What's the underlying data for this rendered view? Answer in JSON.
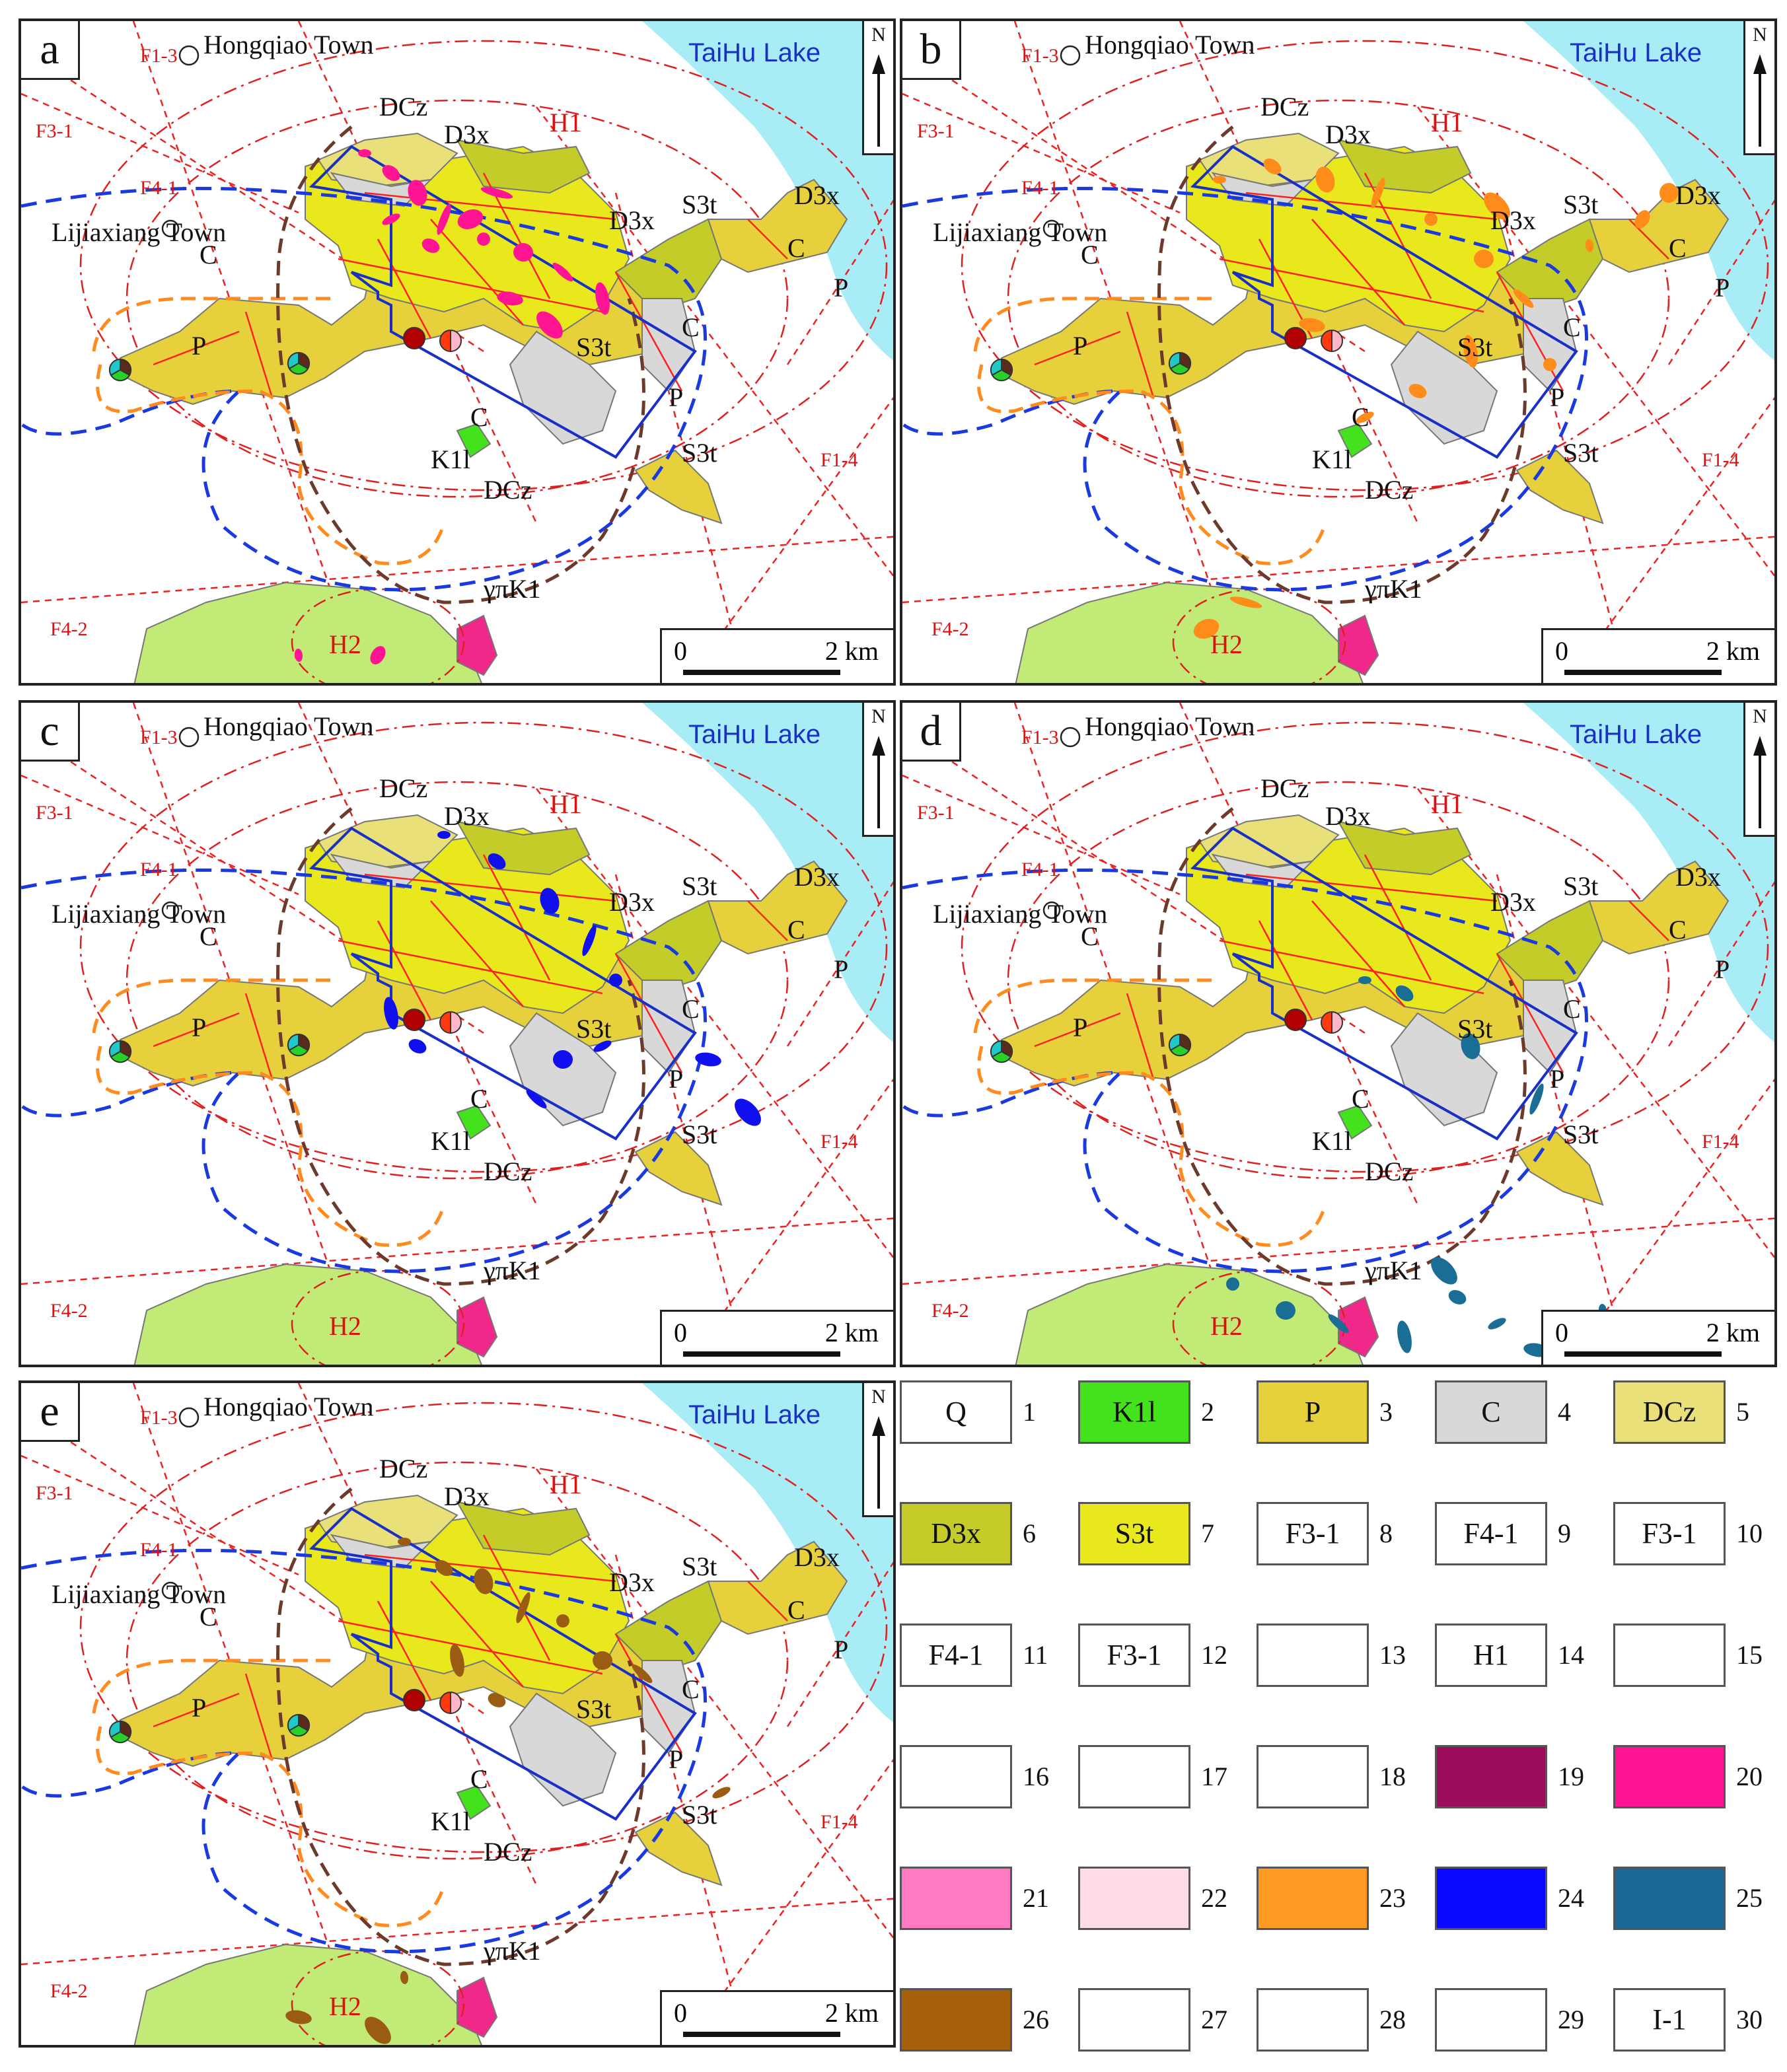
{
  "panels": [
    {
      "letter": "a",
      "overlay": "#ff1493"
    },
    {
      "letter": "b",
      "overlay": "#ff8c1a"
    },
    {
      "letter": "c",
      "overlay": "#1010ee"
    },
    {
      "letter": "d",
      "overlay": "#1a6e96"
    },
    {
      "letter": "e",
      "overlay": "#9a5b12"
    }
  ],
  "map_labels": {
    "hongqiao": "Hongqiao Town",
    "taihu": "TaiHu Lake",
    "lijiaxiang": "Lijiaxiang Town",
    "north": "N",
    "scale_zero": "0",
    "scale_km": "2 km",
    "f13": "F1-3",
    "f31": "F3-1",
    "f41": "F4-1",
    "f14": "F1-4",
    "f42": "F4-2",
    "h1": "H1",
    "h2": "H2",
    "dcz": "DCz",
    "d3x": "D3x",
    "s3t": "S3t",
    "c": "C",
    "p": "P",
    "k1l": "K1l",
    "gpk1": "γπK1"
  },
  "legend": [
    {
      "num": "1",
      "text": "Q",
      "fill": "#ffffff"
    },
    {
      "num": "2",
      "text": "K1l",
      "fill": "#44e21c"
    },
    {
      "num": "3",
      "text": "P",
      "fill": "#e6d03c"
    },
    {
      "num": "4",
      "text": "C",
      "fill": "#d8d8d8"
    },
    {
      "num": "5",
      "text": "DCz",
      "fill": "#e9e07a"
    },
    {
      "num": "6",
      "text": "D3x",
      "fill": "#c4cc2a"
    },
    {
      "num": "7",
      "text": "S3t",
      "fill": "#e8e81c"
    },
    {
      "num": "8",
      "text": "F3-1",
      "fill": "#ffffff"
    },
    {
      "num": "9",
      "text": "F4-1",
      "fill": "#ffffff"
    },
    {
      "num": "10",
      "text": "F3-1",
      "fill": "#ffffff"
    },
    {
      "num": "11",
      "text": "F4-1",
      "fill": "#ffffff"
    },
    {
      "num": "12",
      "text": "F3-1",
      "fill": "#ffffff"
    },
    {
      "num": "13",
      "text": "",
      "fill": "#ffffff"
    },
    {
      "num": "14",
      "text": "H1",
      "fill": "#ffffff"
    },
    {
      "num": "15",
      "text": "",
      "fill": "#ffffff"
    },
    {
      "num": "16",
      "text": "",
      "fill": "#ffffff"
    },
    {
      "num": "17",
      "text": "",
      "fill": "#ffffff"
    },
    {
      "num": "18",
      "text": "",
      "fill": "#ffffff"
    },
    {
      "num": "19",
      "text": "",
      "fill": "#9e0c5c"
    },
    {
      "num": "20",
      "text": "",
      "fill": "#ff1493"
    },
    {
      "num": "21",
      "text": "",
      "fill": "#ff7ac0"
    },
    {
      "num": "22",
      "text": "",
      "fill": "#ffdce8"
    },
    {
      "num": "23",
      "text": "",
      "fill": "#ff9a24"
    },
    {
      "num": "24",
      "text": "",
      "fill": "#0808ff"
    },
    {
      "num": "25",
      "text": "",
      "fill": "#1a6896"
    },
    {
      "num": "26",
      "text": "",
      "fill": "#a6600a"
    },
    {
      "num": "27",
      "text": "",
      "fill": "#ffffff"
    },
    {
      "num": "28",
      "text": "",
      "fill": "#ffffff"
    },
    {
      "num": "29",
      "text": "",
      "fill": "#ffffff"
    },
    {
      "num": "30",
      "text": "I-1",
      "fill": "#ffffff"
    }
  ]
}
